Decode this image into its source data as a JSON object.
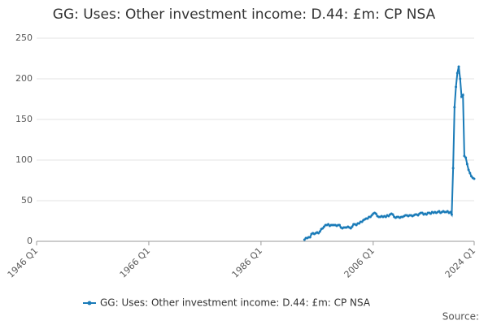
{
  "chart_data": {
    "type": "line",
    "title": "GG: Uses: Other investment income: D.44: £m: CP NSA",
    "source_label": "Source:",
    "categories": [
      "1946 Q1",
      null,
      null,
      null,
      null,
      null,
      null,
      null,
      null,
      null,
      null,
      null,
      null,
      null,
      null,
      null,
      null,
      null,
      null,
      null,
      null,
      null,
      null,
      null,
      null,
      null,
      null,
      null,
      null,
      null,
      null,
      null,
      null,
      null,
      null,
      null,
      null,
      null,
      null,
      null,
      null,
      null,
      null,
      null,
      null,
      null,
      null,
      null,
      null,
      null,
      null,
      null,
      null,
      null,
      null,
      null,
      null,
      null,
      null,
      null,
      null,
      null,
      null,
      null,
      null,
      null,
      null,
      null,
      null,
      null,
      null,
      null,
      null,
      null,
      null,
      null,
      null,
      null,
      null,
      null,
      "1966 Q1",
      null,
      null,
      null,
      null,
      null,
      null,
      null,
      null,
      null,
      null,
      null,
      null,
      null,
      null,
      null,
      null,
      null,
      null,
      null,
      null,
      null,
      null,
      null,
      null,
      null,
      null,
      null,
      null,
      null,
      null,
      null,
      null,
      null,
      null,
      null,
      null,
      null,
      null,
      null,
      null,
      null,
      null,
      null,
      null,
      null,
      null,
      null,
      null,
      null,
      null,
      null,
      null,
      null,
      null,
      null,
      null,
      null,
      null,
      null,
      null,
      null,
      null,
      null,
      null,
      null,
      null,
      null,
      null,
      null,
      null,
      null,
      null,
      null,
      null,
      null,
      null,
      null,
      null,
      null,
      "1986 Q1",
      null,
      null,
      null,
      null,
      null,
      null,
      null,
      null,
      null,
      null,
      null,
      null,
      null,
      null,
      null,
      null,
      null,
      null,
      null,
      null,
      null,
      null,
      null,
      null,
      null,
      null,
      null,
      null,
      null,
      null,
      null,
      null,
      null,
      null,
      null,
      null,
      null,
      null,
      null,
      null,
      null,
      null,
      null,
      null,
      null,
      null,
      null,
      null,
      null,
      null,
      null,
      null,
      null,
      null,
      null,
      null,
      null,
      null,
      null,
      null,
      null,
      null,
      null,
      null,
      null,
      null,
      null,
      null,
      null,
      null,
      null,
      null,
      null,
      null,
      null,
      null,
      null,
      null,
      null,
      "2006 Q1",
      null,
      null,
      null,
      null,
      null,
      null,
      null,
      null,
      null,
      null,
      null,
      null,
      null,
      null,
      null,
      null,
      null,
      null,
      null,
      null,
      null,
      null,
      null,
      null,
      null,
      null,
      null,
      null,
      null,
      null,
      null,
      null,
      null,
      null,
      null,
      null,
      null,
      null,
      null,
      null,
      null,
      null,
      null,
      null,
      null,
      null,
      null,
      null,
      null,
      null,
      null,
      null,
      null,
      null,
      null,
      null,
      null,
      null,
      null,
      null,
      null,
      null,
      null,
      null,
      null,
      null,
      null,
      null,
      null,
      null,
      null,
      "2024 Q1"
    ],
    "series": [
      {
        "name": "GG: Uses: Other investment income: D.44: £m: CP NSA",
        "color": "#1a7bb8",
        "values": [
          null,
          null,
          null,
          null,
          null,
          null,
          null,
          null,
          null,
          null,
          null,
          null,
          null,
          null,
          null,
          null,
          null,
          null,
          null,
          null,
          null,
          null,
          null,
          null,
          null,
          null,
          null,
          null,
          null,
          null,
          null,
          null,
          null,
          null,
          null,
          null,
          null,
          null,
          null,
          null,
          null,
          null,
          null,
          null,
          null,
          null,
          null,
          null,
          null,
          null,
          null,
          null,
          null,
          null,
          null,
          null,
          null,
          null,
          null,
          null,
          null,
          null,
          null,
          null,
          null,
          null,
          null,
          null,
          null,
          null,
          null,
          null,
          null,
          null,
          null,
          null,
          null,
          null,
          null,
          null,
          null,
          null,
          null,
          null,
          null,
          null,
          null,
          null,
          null,
          null,
          null,
          null,
          null,
          null,
          null,
          null,
          null,
          null,
          null,
          null,
          null,
          null,
          null,
          null,
          null,
          null,
          null,
          null,
          null,
          null,
          null,
          null,
          null,
          null,
          null,
          null,
          null,
          null,
          null,
          null,
          null,
          null,
          null,
          null,
          null,
          null,
          null,
          null,
          null,
          null,
          null,
          null,
          null,
          null,
          null,
          null,
          null,
          null,
          null,
          null,
          null,
          null,
          null,
          null,
          null,
          null,
          null,
          null,
          null,
          null,
          null,
          null,
          null,
          null,
          null,
          null,
          null,
          null,
          null,
          null,
          null,
          null,
          null,
          null,
          null,
          null,
          null,
          null,
          null,
          null,
          null,
          null,
          null,
          null,
          null,
          null,
          null,
          null,
          null,
          null,
          null,
          null,
          null,
          null,
          null,
          null,
          null,
          null,
          null,
          null,
          null,
          2,
          4,
          4,
          5,
          5,
          9,
          10,
          9,
          10,
          11,
          10,
          12,
          15,
          16,
          18,
          20,
          20,
          21,
          19,
          20,
          20,
          20,
          20,
          19,
          20,
          20,
          17,
          16,
          17,
          17,
          17,
          18,
          17,
          16,
          18,
          21,
          21,
          20,
          22,
          22,
          24,
          24,
          26,
          27,
          28,
          28,
          30,
          30,
          32,
          34,
          35,
          34,
          31,
          30,
          30,
          31,
          30,
          31,
          30,
          32,
          31,
          33,
          34,
          33,
          30,
          29,
          30,
          30,
          29,
          30,
          30,
          31,
          32,
          32,
          31,
          32,
          32,
          31,
          32,
          33,
          33,
          32,
          34,
          35,
          35,
          33,
          34,
          33,
          35,
          35,
          34,
          36,
          35,
          36,
          35,
          36,
          37,
          35,
          36,
          37,
          36,
          36,
          37,
          35,
          36,
          33,
          90,
          165,
          190,
          207,
          215,
          200,
          178,
          180,
          105,
          103,
          95,
          88,
          84,
          80,
          78,
          77
        ]
      }
    ],
    "ylim": [
      0,
      250
    ],
    "yticks": [
      0,
      50,
      100,
      150,
      200,
      250
    ],
    "grid": true
  }
}
